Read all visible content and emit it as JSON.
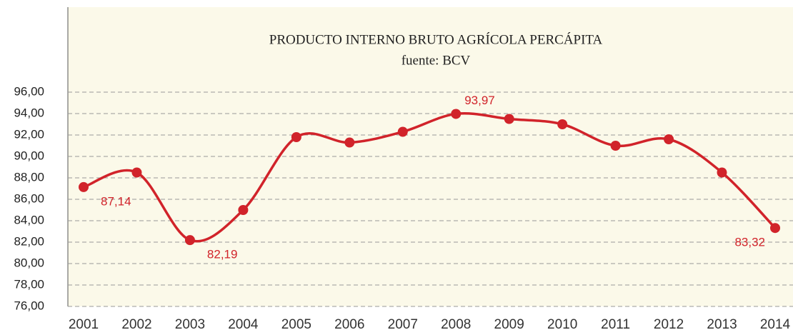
{
  "chart_data": {
    "type": "line",
    "title": "PRODUCTO INTERNO BRUTO AGRÍCOLA PERCÁPITA",
    "subtitle": "fuente: BCV",
    "categories": [
      "2001",
      "2002",
      "2003",
      "2004",
      "2005",
      "2006",
      "2007",
      "2008",
      "2009",
      "2010",
      "2011",
      "2012",
      "2013",
      "2014"
    ],
    "series": [
      {
        "color": "#d1232a",
        "values": [
          87.14,
          88.5,
          82.19,
          85.0,
          91.8,
          91.3,
          92.3,
          93.97,
          93.5,
          93.0,
          91.0,
          91.6,
          88.5,
          83.32
        ],
        "value_labels": [
          "87,14",
          null,
          "82,19",
          null,
          null,
          null,
          null,
          "93,97",
          null,
          null,
          null,
          null,
          null,
          "83,32"
        ]
      }
    ],
    "ylim": [
      76,
      96
    ],
    "yticks": [
      {
        "value": 76,
        "label": "76,00"
      },
      {
        "value": 78,
        "label": "78,00"
      },
      {
        "value": 80,
        "label": "80,00"
      },
      {
        "value": 82,
        "label": "82,00"
      },
      {
        "value": 84,
        "label": "84,00"
      },
      {
        "value": 86,
        "label": "86,00"
      },
      {
        "value": 88,
        "label": "88,00"
      },
      {
        "value": 90,
        "label": "90,00"
      },
      {
        "value": 92,
        "label": "92,00"
      },
      {
        "value": 94,
        "label": "94,00"
      },
      {
        "value": 96,
        "label": "96,00"
      }
    ],
    "grid": true
  }
}
